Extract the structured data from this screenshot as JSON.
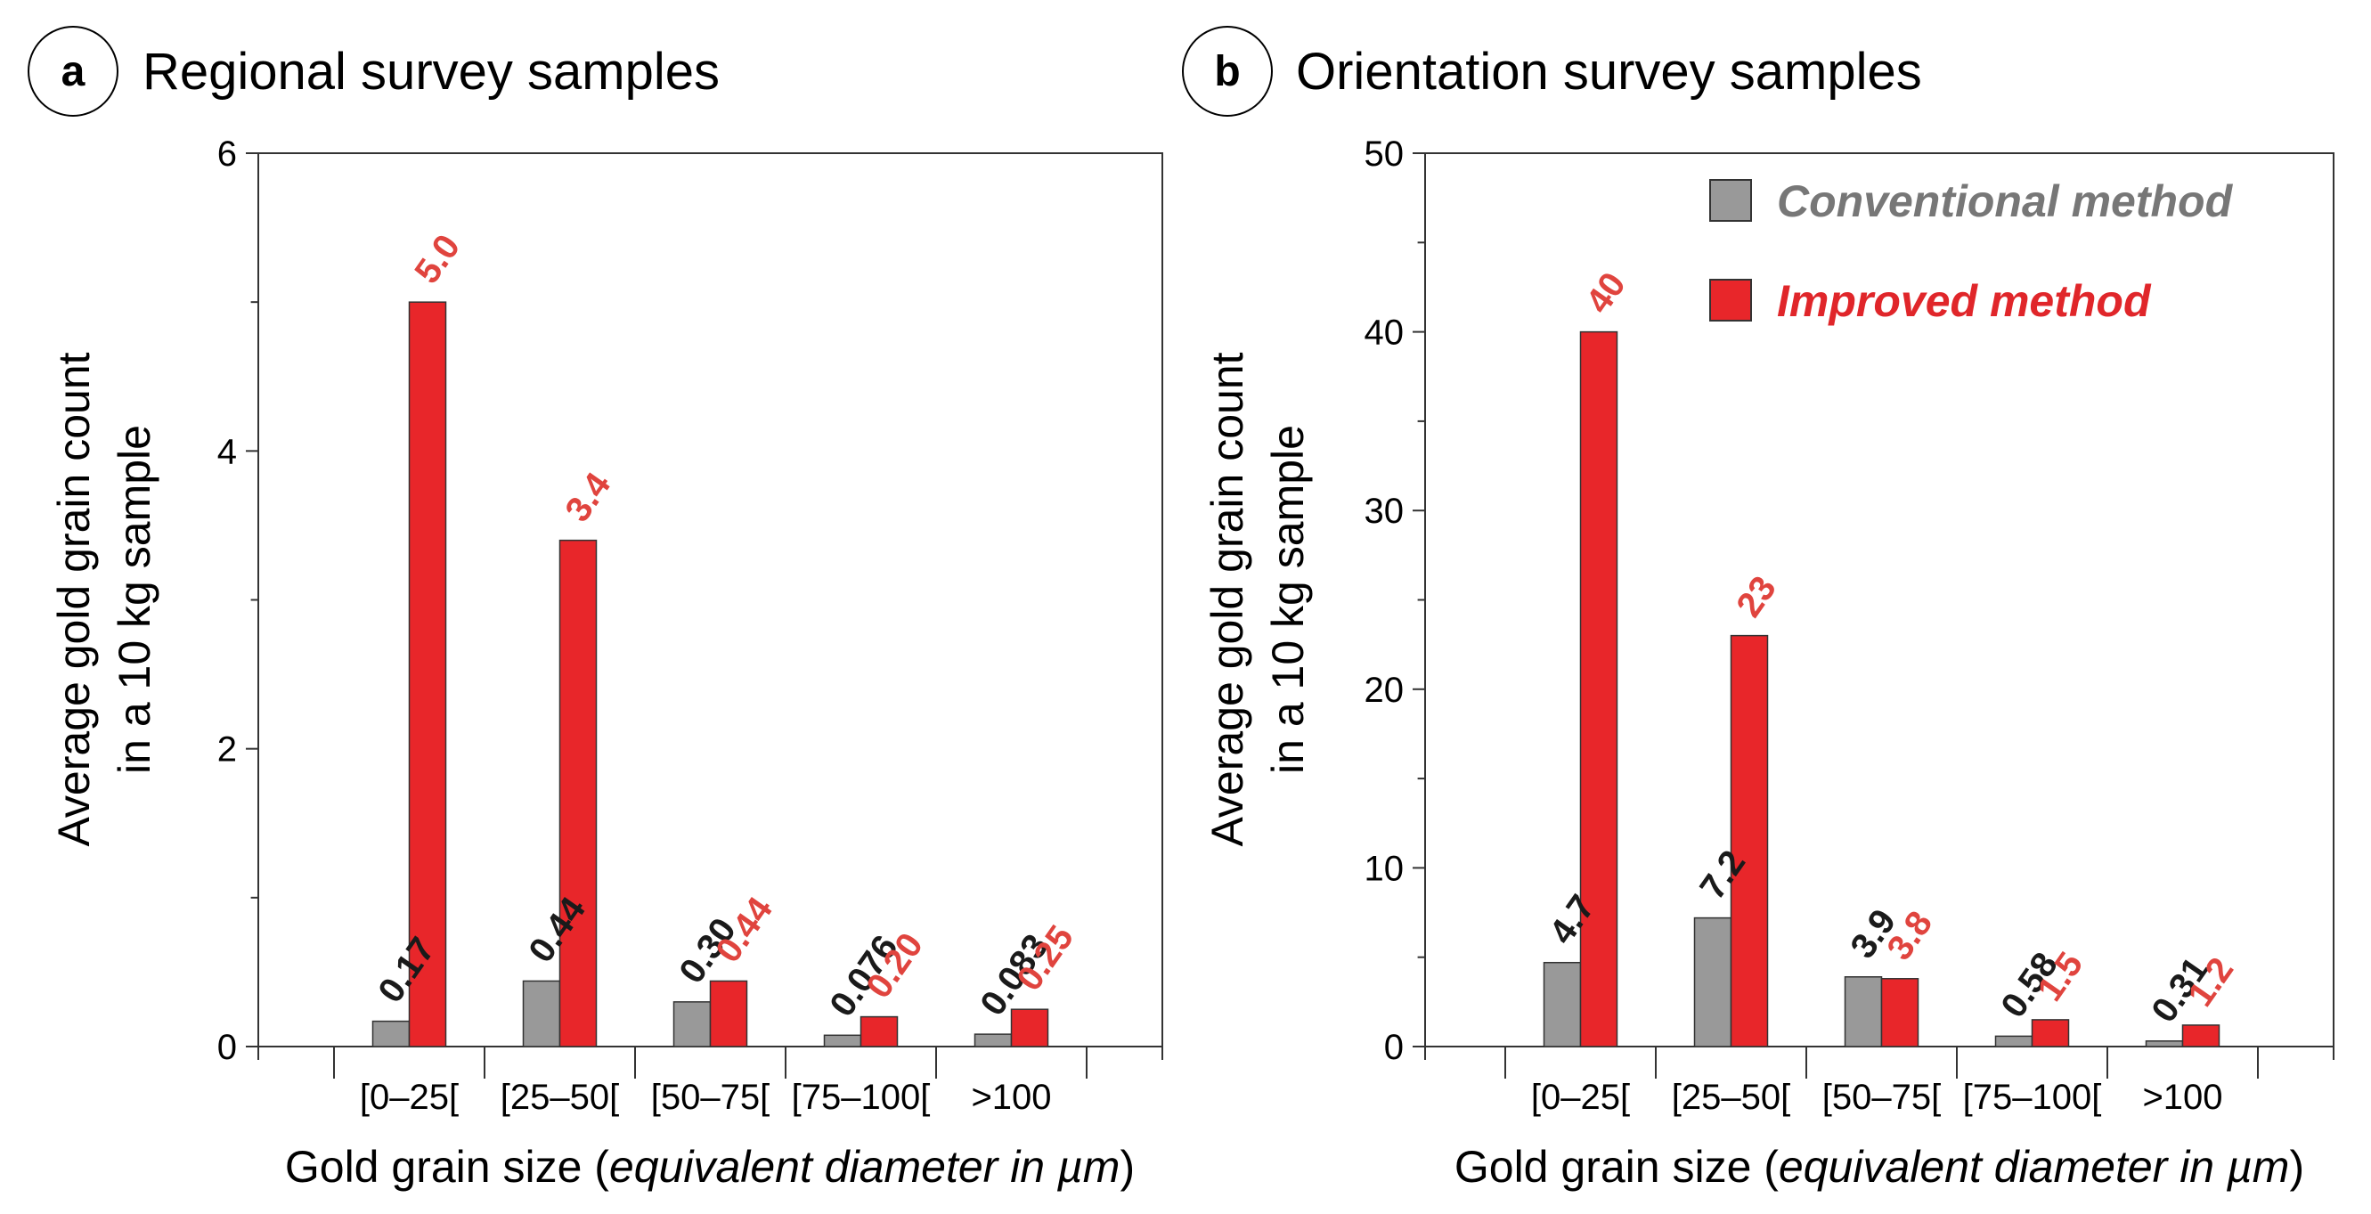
{
  "colors": {
    "conventional": "#999999",
    "improved": "#e8262a",
    "axis": "#333333",
    "label_conventional": "#1a1a1a",
    "label_improved": "#e0443e",
    "legend_conventional": "#777777",
    "legend_improved": "#e0262a"
  },
  "legend": {
    "conventional": "Conventional method",
    "improved": "Improved method"
  },
  "chart_data": [
    {
      "type": "bar",
      "panel_letter": "a",
      "title": "Regional survey samples",
      "ylabel_line1": "Average gold grain count",
      "ylabel_line2": "in a 10 kg sample",
      "xlabel_prefix": "Gold grain size (",
      "xlabel_italic": "equivalent diameter in µm",
      "xlabel_suffix": ")",
      "categories": [
        "[0–25[",
        "[25–50[",
        "[50–75[",
        "[75–100[",
        ">100"
      ],
      "ylim": [
        0,
        6
      ],
      "yticks": [
        "0",
        "2",
        "4",
        "6"
      ],
      "series": [
        {
          "name": "Conventional method",
          "values": [
            0.17,
            0.44,
            0.3,
            0.076,
            0.083
          ],
          "labels": [
            "0.17",
            "0.44",
            "0.30",
            "0.076",
            "0.083"
          ]
        },
        {
          "name": "Improved method",
          "values": [
            5.0,
            3.4,
            0.44,
            0.2,
            0.25
          ],
          "labels": [
            "5.0",
            "3.4",
            "0.44",
            "0.20",
            "0.25"
          ]
        }
      ]
    },
    {
      "type": "bar",
      "panel_letter": "b",
      "title": "Orientation survey samples",
      "ylabel_line1": "Average gold grain count",
      "ylabel_line2": "in a 10 kg sample",
      "xlabel_prefix": "Gold grain size (",
      "xlabel_italic": "equivalent diameter in µm",
      "xlabel_suffix": ")",
      "categories": [
        "[0–25[",
        "[25–50[",
        "[50–75[",
        "[75–100[",
        ">100"
      ],
      "ylim": [
        0,
        50
      ],
      "yticks": [
        "0",
        "10",
        "20",
        "30",
        "40",
        "50"
      ],
      "series": [
        {
          "name": "Conventional method",
          "values": [
            4.7,
            7.2,
            3.9,
            0.58,
            0.31
          ],
          "labels": [
            "4.7",
            "7.2",
            "3.9",
            "0.58",
            "0.31"
          ]
        },
        {
          "name": "Improved method",
          "values": [
            40,
            23,
            3.8,
            1.5,
            1.2
          ],
          "labels": [
            "40",
            "23",
            "3.8",
            "1.5",
            "1.2"
          ]
        }
      ]
    }
  ]
}
